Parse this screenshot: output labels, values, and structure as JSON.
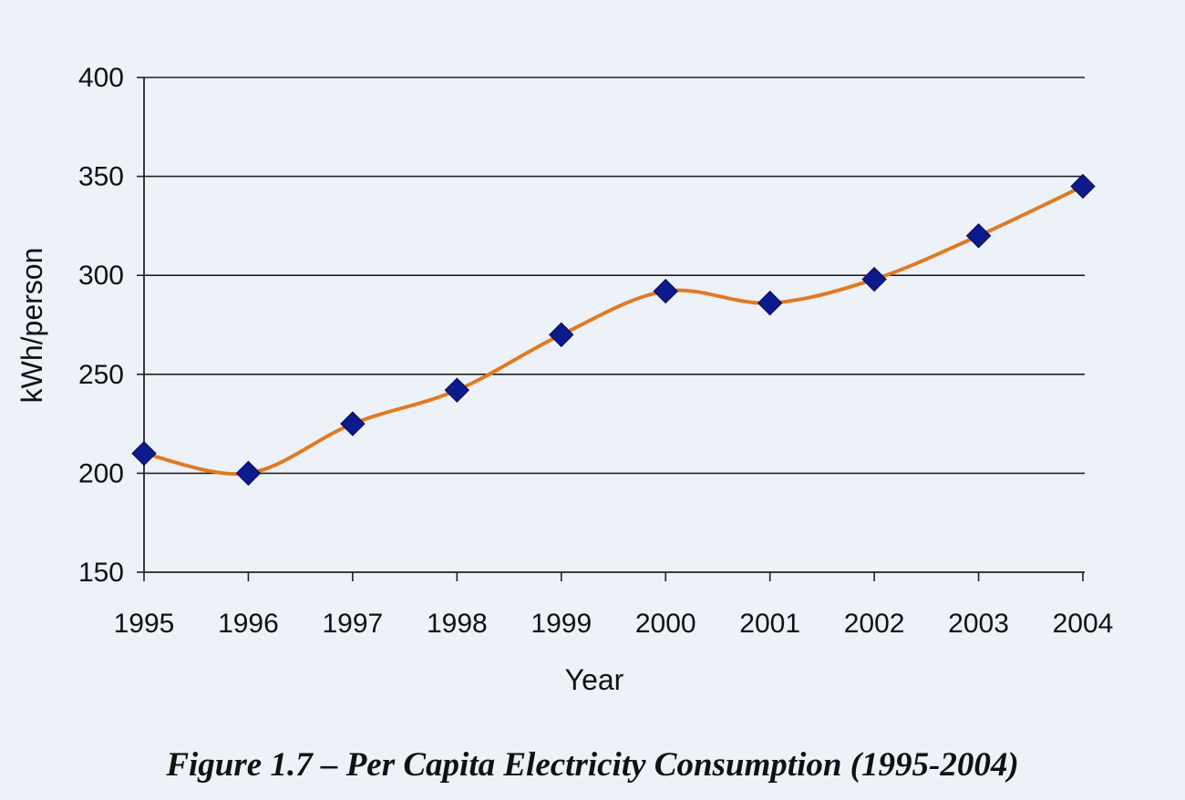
{
  "figure": {
    "caption": "Figure 1.7 – Per Capita Electricity Consumption (1995-2004)"
  },
  "chart_data": {
    "type": "line",
    "title": "",
    "xlabel": "Year",
    "ylabel": "kWh/person",
    "x": [
      "1995",
      "1996",
      "1997",
      "1998",
      "1999",
      "2000",
      "2001",
      "2002",
      "2003",
      "2004"
    ],
    "series": [
      {
        "values": [
          210,
          200,
          225,
          242,
          270,
          292,
          286,
          298,
          320,
          345
        ]
      }
    ],
    "ylim": [
      150,
      400
    ],
    "yticks": [
      150,
      200,
      250,
      300,
      350,
      400
    ],
    "grid": true,
    "legend": "none",
    "line_color": "#e07a22",
    "marker": "diamond",
    "marker_color": "#0d1a8c",
    "grid_color": "#222222"
  }
}
